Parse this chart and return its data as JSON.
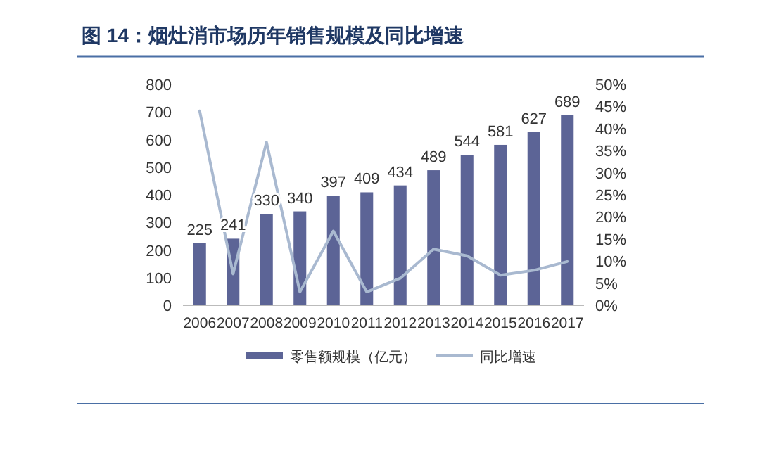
{
  "chart_data": {
    "type": "bar",
    "title": "图 14：烟灶消市场历年销售规模及同比增速",
    "categories": [
      "2006",
      "2007",
      "2008",
      "2009",
      "2010",
      "2011",
      "2012",
      "2013",
      "2014",
      "2015",
      "2016",
      "2017"
    ],
    "series": [
      {
        "name": "零售额规模（亿元）",
        "color": "#5c6496",
        "values": [
          225,
          241,
          330,
          340,
          397,
          409,
          434,
          489,
          544,
          581,
          627,
          689
        ]
      },
      {
        "name": "同比增速",
        "type": "line",
        "axis": "y2",
        "color": "#a9b9d0",
        "values": [
          44,
          7.1,
          36.9,
          3.0,
          16.8,
          3.0,
          6.1,
          12.7,
          11.2,
          6.8,
          7.9,
          9.9
        ]
      }
    ],
    "ylim": [
      0,
      800
    ],
    "yticks": [
      0,
      100,
      200,
      300,
      400,
      500,
      600,
      700,
      800
    ],
    "y2lim": [
      0,
      50
    ],
    "y2ticks": [
      {
        "value": 0,
        "label": "0%"
      },
      {
        "value": 5,
        "label": "5%"
      },
      {
        "value": 10,
        "label": "10%"
      },
      {
        "value": 15,
        "label": "15%"
      },
      {
        "value": 20,
        "label": "20%"
      },
      {
        "value": 25,
        "label": "25%"
      },
      {
        "value": 30,
        "label": "30%"
      },
      {
        "value": 35,
        "label": "35%"
      },
      {
        "value": 40,
        "label": "40%"
      },
      {
        "value": 45,
        "label": "45%"
      },
      {
        "value": 50,
        "label": "50%"
      }
    ],
    "value_labels": [
      "225",
      "241",
      "330",
      "340",
      "397",
      "409",
      "434",
      "489",
      "544",
      "581",
      "627",
      "689"
    ],
    "legend": "bottom",
    "grid": false,
    "marker": "none"
  }
}
